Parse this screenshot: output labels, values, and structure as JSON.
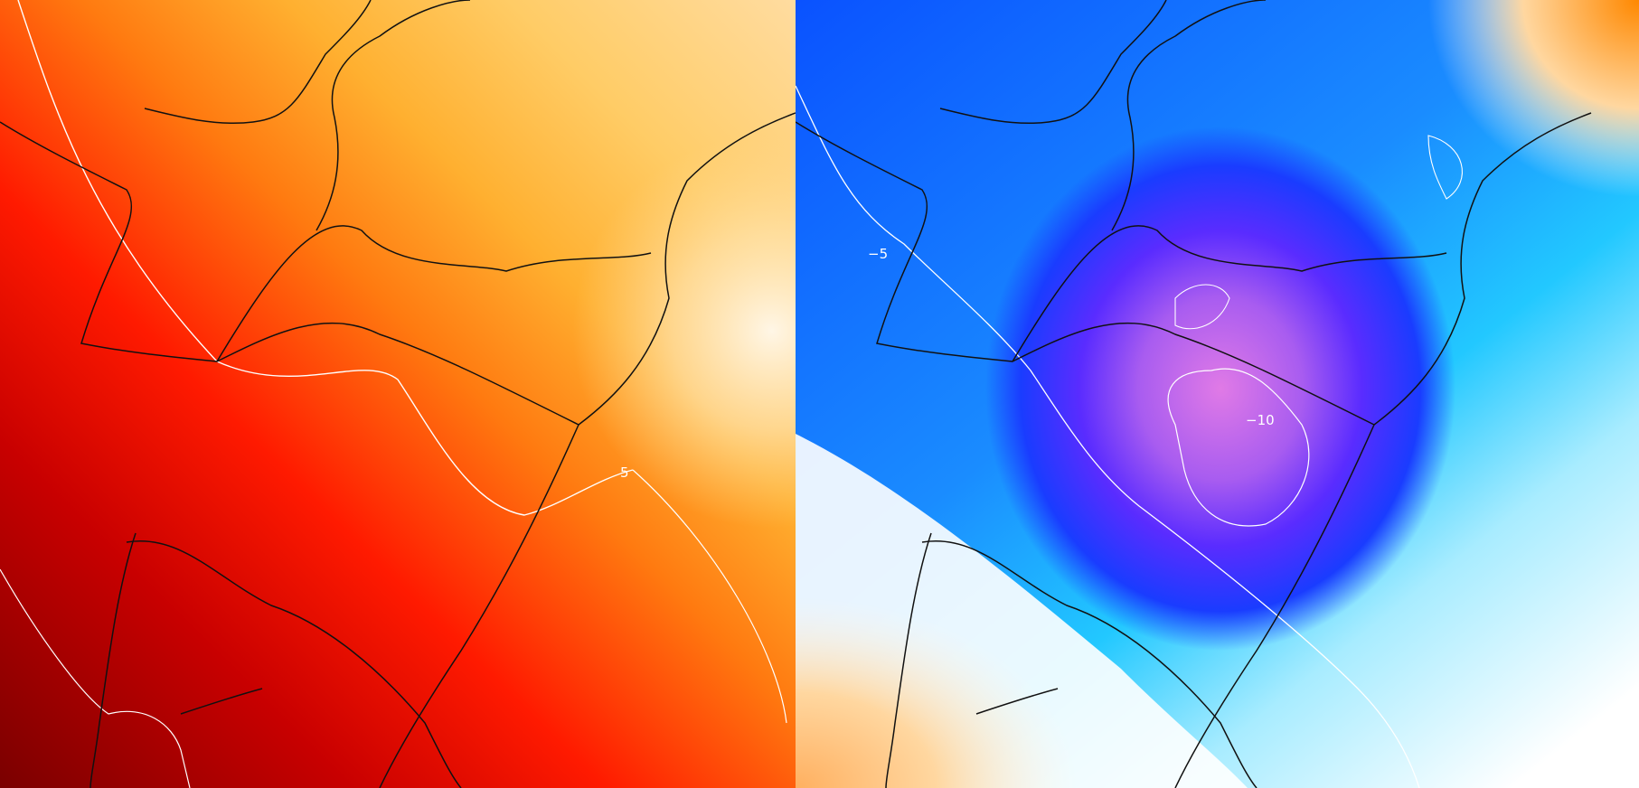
{
  "maps": [
    {
      "id": "left",
      "palette": "warm",
      "contour_labels": [
        {
          "text": "5"
        }
      ],
      "colors": {
        "deep": "#7a0000",
        "red": "#ff1a00",
        "orange": "#ff9900",
        "light": "#ffd890",
        "pale": "#fff6e6"
      }
    },
    {
      "id": "right",
      "palette": "cold",
      "contour_labels": [
        {
          "text": "−5"
        },
        {
          "text": "−10"
        }
      ],
      "colors": {
        "violet": "#e07ae6",
        "purple": "#8840ff",
        "blue": "#1a3cff",
        "mid": "#0088ff",
        "cyan": "#22c8ff",
        "pale": "#d8f6ff",
        "white": "#ffffff",
        "warm": "#ffd7a0"
      }
    }
  ]
}
